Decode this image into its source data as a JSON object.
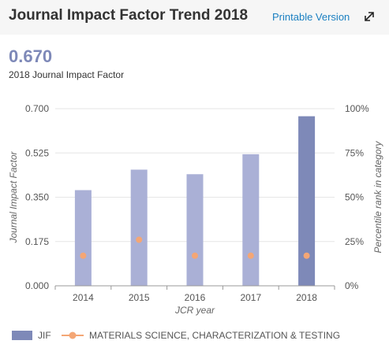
{
  "header": {
    "title": "Journal Impact Factor Trend 2018",
    "printable_label": "Printable Version",
    "expand_icon": "expand-arrows-icon"
  },
  "summary": {
    "value": "0.670",
    "label": "2018 Journal Impact Factor"
  },
  "colors": {
    "bar": "#aab0d6",
    "bar_highlight": "#7e89b8",
    "marker": "#f4a675",
    "link": "#1a7fc1",
    "grid": "#e6e6e6"
  },
  "chart_data": {
    "type": "bar",
    "categories": [
      "2014",
      "2015",
      "2016",
      "2017",
      "2018"
    ],
    "series": [
      {
        "name": "JIF",
        "type": "bar",
        "axis": "left",
        "values": [
          0.378,
          0.459,
          0.441,
          0.52,
          0.67
        ]
      },
      {
        "name": "MATERIALS SCIENCE, CHARACTERIZATION & TESTING",
        "type": "scatter",
        "axis": "right",
        "values": [
          17,
          26,
          17,
          17,
          17
        ]
      }
    ],
    "xlabel": "JCR year",
    "ylabel": "Journal Impact Factor",
    "y2label": "Percentile rank in category",
    "ylim": [
      0,
      0.7
    ],
    "y2lim": [
      0,
      100
    ],
    "yticks": [
      "0.000",
      "0.175",
      "0.350",
      "0.525",
      "0.700"
    ],
    "y2ticks": [
      "0%",
      "25%",
      "50%",
      "75%",
      "100%"
    ],
    "grid": true,
    "legend_position": "bottom-left"
  }
}
